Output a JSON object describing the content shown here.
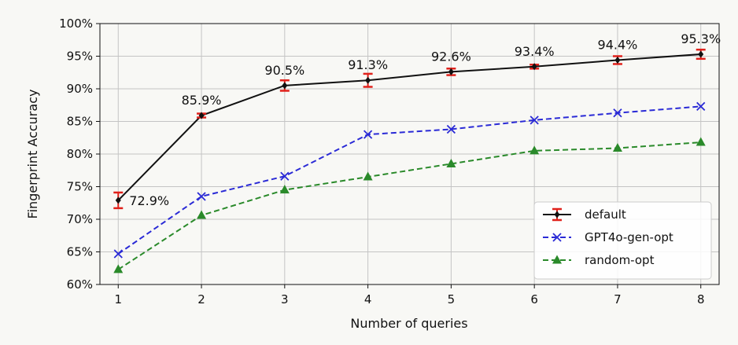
{
  "chart_data": {
    "type": "line",
    "xlabel": "Number of queries",
    "ylabel": "Fingerprint Accuracy",
    "x": [
      1,
      2,
      3,
      4,
      5,
      6,
      7,
      8
    ],
    "x_tick_labels": [
      "1",
      "2",
      "3",
      "4",
      "5",
      "6",
      "7",
      "8"
    ],
    "ylim": [
      60,
      100
    ],
    "y_ticks": [
      60,
      65,
      70,
      75,
      80,
      85,
      90,
      95,
      100
    ],
    "y_tick_labels": [
      "60%",
      "65%",
      "70%",
      "75%",
      "80%",
      "85%",
      "90%",
      "95%",
      "100%"
    ],
    "grid": true,
    "legend_position": "bottom-right",
    "series": [
      {
        "name": "default",
        "color": "#111111",
        "errorbar_color": "#e0211b",
        "marker": "diamond",
        "linestyle": "solid",
        "values": [
          72.9,
          85.9,
          90.5,
          91.3,
          92.6,
          93.4,
          94.4,
          95.3
        ],
        "errors": [
          1.2,
          0.3,
          0.8,
          1.0,
          0.5,
          0.3,
          0.6,
          0.7
        ],
        "data_labels": [
          "72.9%",
          "85.9%",
          "90.5%",
          "91.3%",
          "92.6%",
          "93.4%",
          "94.4%",
          "95.3%"
        ]
      },
      {
        "name": "GPT4o-gen-opt",
        "color": "#2a2ad6",
        "marker": "x",
        "linestyle": "dashed",
        "values": [
          64.7,
          73.5,
          76.6,
          83.0,
          83.8,
          85.2,
          86.3,
          87.3
        ]
      },
      {
        "name": "random-opt",
        "color": "#2a8a2a",
        "marker": "triangle",
        "linestyle": "dashed",
        "values": [
          62.3,
          70.6,
          74.5,
          76.5,
          78.5,
          80.5,
          80.9,
          81.8
        ]
      }
    ]
  }
}
